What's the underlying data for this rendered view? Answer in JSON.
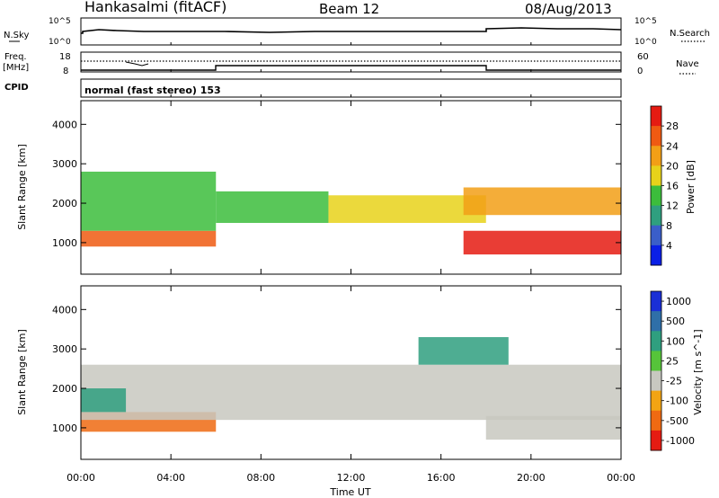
{
  "header": {
    "station": "Hankasalmi (fitACF)",
    "beam": "Beam 12",
    "date": "08/Aug/2013"
  },
  "panels": {
    "nsky": {
      "left_label": "N.Sky",
      "right_label": "N.Search",
      "left_ticks": [
        "10^5",
        "10^0"
      ],
      "right_ticks": [
        "10^5",
        "10^0"
      ]
    },
    "freq": {
      "left_label_1": "Freq.",
      "left_label_2": "[MHz]",
      "left_ticks": [
        "18",
        "8"
      ],
      "right_label": "Nave",
      "right_ticks": [
        "60",
        "0"
      ]
    },
    "cpid": {
      "label": "CPID",
      "mode_text": "normal (fast stereo) 153"
    }
  },
  "chart_data": [
    {
      "type": "heatmap",
      "parameter": "power",
      "ylabel": "Slant Range [km]",
      "yticks": [
        "1000",
        "2000",
        "3000",
        "4000"
      ],
      "ylim": [
        200,
        4600
      ],
      "xlim_hours": [
        0,
        24
      ],
      "colorbar": {
        "label": "Power [dB]",
        "ticks": [
          "4",
          "8",
          "12",
          "16",
          "20",
          "24",
          "28"
        ],
        "range": [
          0,
          32
        ],
        "colors": [
          "#0a1fe6",
          "#3a5ec9",
          "#2f9f7f",
          "#3cbd3c",
          "#e7d21a",
          "#f29f16",
          "#ef5a12",
          "#e51b12"
        ]
      },
      "bands": [
        {
          "t0": 0.0,
          "t1": 6.0,
          "r0": 900,
          "r1": 1300,
          "power": 26
        },
        {
          "t0": 0.0,
          "t1": 6.0,
          "r0": 1300,
          "r1": 2800,
          "power": 12
        },
        {
          "t0": 6.0,
          "t1": 11.0,
          "r0": 1500,
          "r1": 2300,
          "power": 14
        },
        {
          "t0": 11.0,
          "t1": 18.0,
          "r0": 1500,
          "r1": 2200,
          "power": 18
        },
        {
          "t0": 17.0,
          "t1": 24.0,
          "r0": 700,
          "r1": 1300,
          "power": 28
        },
        {
          "t0": 17.0,
          "t1": 24.0,
          "r0": 1700,
          "r1": 2400,
          "power": 20
        }
      ]
    },
    {
      "type": "heatmap",
      "parameter": "velocity",
      "ylabel": "Slant Range [km]",
      "yticks": [
        "1000",
        "2000",
        "3000",
        "4000"
      ],
      "ylim": [
        200,
        4600
      ],
      "xlim_hours": [
        0,
        24
      ],
      "xlabel": "Time UT",
      "xticks": [
        "00:00",
        "04:00",
        "08:00",
        "12:00",
        "16:00",
        "20:00",
        "00:00"
      ],
      "colorbar": {
        "label": "Velocity [m s^-1]",
        "ticks": [
          "1000",
          "500",
          "100",
          "25",
          "-25",
          "-100",
          "-500",
          "-1000"
        ],
        "colors": [
          "#1a2fd6",
          "#2f6fa8",
          "#2f9f7f",
          "#56c43a",
          "#c8c8c0",
          "#f2a413",
          "#ef6a12",
          "#e51b12"
        ]
      },
      "bands": [
        {
          "t0": 0.0,
          "t1": 6.0,
          "r0": 900,
          "r1": 1400,
          "velocity": -300
        },
        {
          "t0": 0.0,
          "t1": 24.0,
          "r0": 1200,
          "r1": 2600,
          "velocity": 0
        },
        {
          "t0": 0.0,
          "t1": 2.0,
          "r0": 1400,
          "r1": 2000,
          "velocity": 400
        },
        {
          "t0": 15.0,
          "t1": 19.0,
          "r0": 2600,
          "r1": 3300,
          "velocity": 100
        },
        {
          "t0": 18.0,
          "t1": 24.0,
          "r0": 700,
          "r1": 1300,
          "velocity": 0
        }
      ]
    }
  ]
}
